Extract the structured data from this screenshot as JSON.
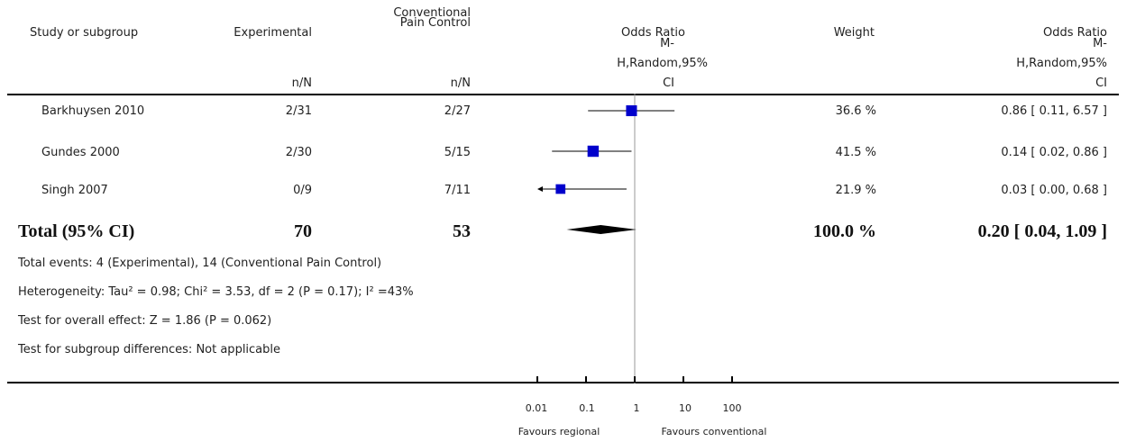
{
  "header": {
    "study": "Study or subgroup",
    "experimental": "Experimental",
    "conventional_l1": "Conventional",
    "conventional_l2": "Pain Control",
    "nN": "n/N",
    "or_l1": "Odds Ratio",
    "or_l2": "M-",
    "or_l3": "H,Random,95%",
    "or_l4": "CI",
    "weight": "Weight"
  },
  "studies": [
    {
      "name": "Barkhuysen 2010",
      "exp": "2/31",
      "con": "2/27",
      "weight": "36.6 %",
      "ci_text": "0.86 [ 0.11, 6.57 ]"
    },
    {
      "name": "Gundes 2000",
      "exp": "2/30",
      "con": "5/15",
      "weight": "41.5 %",
      "ci_text": "0.14 [ 0.02, 0.86 ]"
    },
    {
      "name": "Singh 2007",
      "exp": "0/9",
      "con": "7/11",
      "weight": "21.9 %",
      "ci_text": "0.03 [ 0.00, 0.68 ]"
    }
  ],
  "total": {
    "label": "Total (95% CI)",
    "exp": "70",
    "con": "53",
    "weight": "100.0 %",
    "ci_text": "0.20 [ 0.04, 1.09 ]"
  },
  "footnotes": {
    "events": "Total events: 4 (Experimental), 14 (Conventional Pain Control)",
    "heterogeneity": "Heterogeneity: Tau² = 0.98; Chi² = 3.53, df = 2 (P = 0.17); I² =43%",
    "overall": "Test for overall effect: Z = 1.86 (P = 0.062)",
    "subgroup": "Test for subgroup differences: Not applicable"
  },
  "axis": {
    "ticks": [
      "0.01",
      "0.1",
      "1",
      "10",
      "100"
    ],
    "left_label": "Favours regional",
    "right_label": "Favours conventional"
  },
  "colors": {
    "square": "#0000cc",
    "line": "#000000",
    "null_line": "#999999"
  },
  "chart_data": {
    "type": "forest",
    "scale": "log",
    "xlim": [
      0.01,
      100
    ],
    "null_value": 1,
    "studies": [
      {
        "name": "Barkhuysen 2010",
        "or": 0.86,
        "lo": 0.11,
        "hi": 6.57,
        "weight": 36.6
      },
      {
        "name": "Gundes 2000",
        "or": 0.14,
        "lo": 0.02,
        "hi": 0.86,
        "weight": 41.5
      },
      {
        "name": "Singh 2007",
        "or": 0.03,
        "lo": 0.0,
        "hi": 0.68,
        "weight": 21.9
      }
    ],
    "total": {
      "or": 0.2,
      "lo": 0.04,
      "hi": 1.09
    }
  }
}
